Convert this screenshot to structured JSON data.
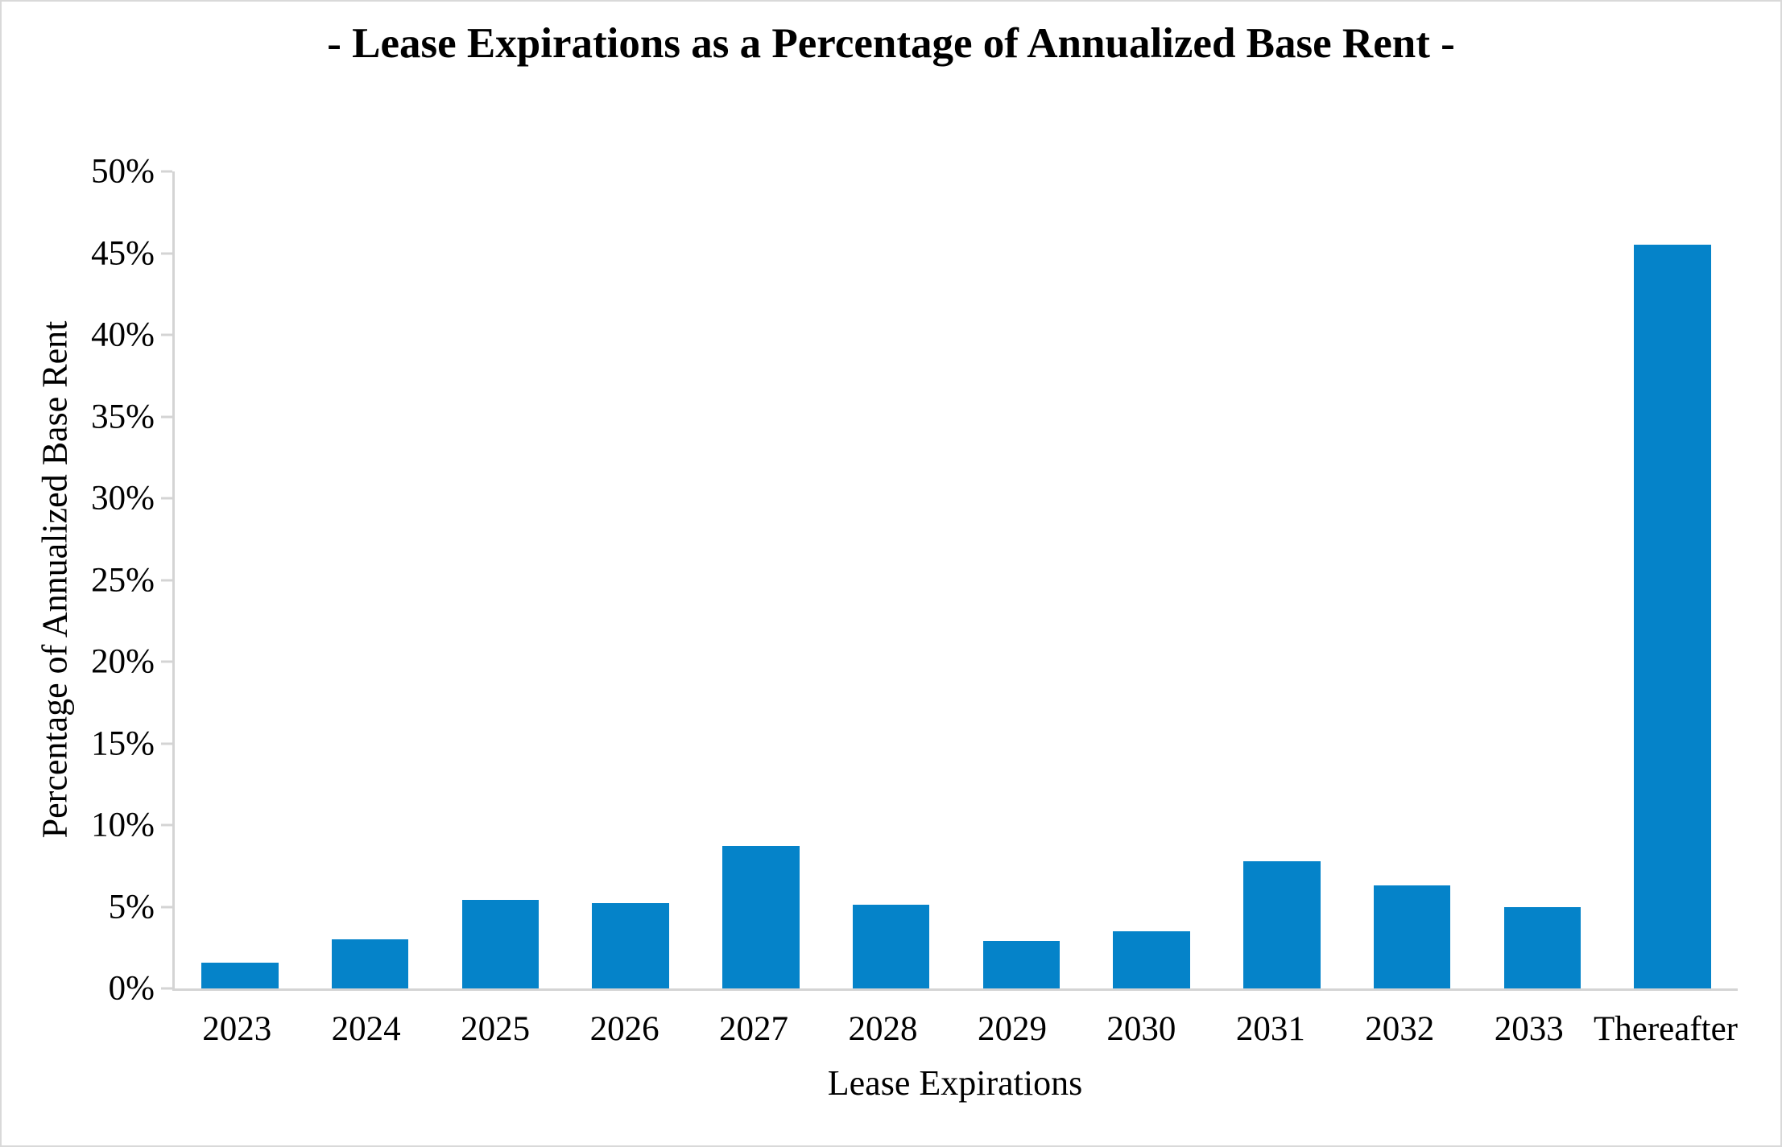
{
  "chart_data": {
    "type": "bar",
    "title": "- Lease Expirations as a Percentage of Annualized Base Rent -",
    "xlabel": "Lease Expirations",
    "ylabel": "Percentage of Annualized Base Rent",
    "categories": [
      "2023",
      "2024",
      "2025",
      "2026",
      "2027",
      "2028",
      "2029",
      "2030",
      "2031",
      "2032",
      "2033",
      "Thereafter"
    ],
    "values": [
      1.6,
      3.0,
      5.4,
      5.2,
      8.7,
      5.1,
      2.9,
      3.5,
      7.8,
      6.3,
      5.0,
      45.5
    ],
    "ylim": [
      0,
      50
    ],
    "ytick_step": 5,
    "ytick_labels": [
      "50%",
      "45%",
      "40%",
      "35%",
      "30%",
      "25%",
      "20%",
      "15%",
      "10%",
      "5%",
      "0%"
    ],
    "grid": false,
    "legend": "none",
    "colors": {
      "bar": "#0583c9",
      "axis": "#d4d4d4",
      "frame_border": "#d9d9d9",
      "text": "#000000"
    }
  }
}
